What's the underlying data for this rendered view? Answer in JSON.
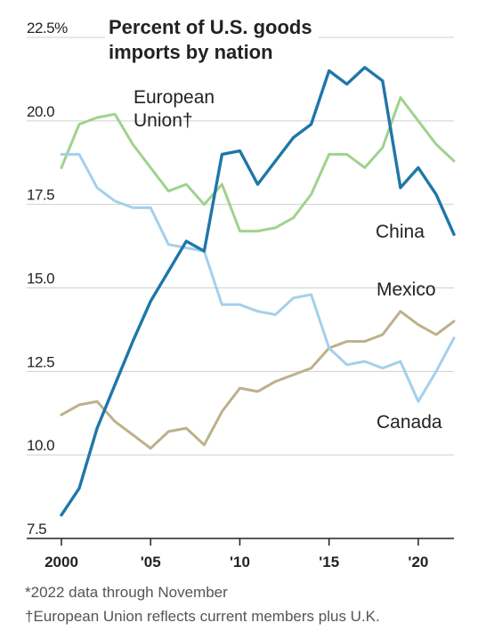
{
  "chart_data": {
    "type": "line",
    "title": "Percent of U.S. goods imports by nation",
    "title_lines": [
      "Percent of U.S. goods",
      "imports by nation"
    ],
    "ylim": [
      7.5,
      22.5
    ],
    "yticks": [
      {
        "value": 22.5,
        "label": "22.5%"
      },
      {
        "value": 20.0,
        "label": "20.0"
      },
      {
        "value": 17.5,
        "label": "17.5"
      },
      {
        "value": 15.0,
        "label": "15.0"
      },
      {
        "value": 12.5,
        "label": "12.5"
      },
      {
        "value": 10.0,
        "label": "10.0"
      },
      {
        "value": 7.5,
        "label": "7.5"
      }
    ],
    "xlim": [
      2000,
      2022
    ],
    "xticks": [
      {
        "value": 2000,
        "label": "2000"
      },
      {
        "value": 2005,
        "label": "'05"
      },
      {
        "value": 2010,
        "label": "'10"
      },
      {
        "value": 2015,
        "label": "'15"
      },
      {
        "value": 2020,
        "label": "'20"
      }
    ],
    "grid": true,
    "x": [
      2000,
      2001,
      2002,
      2003,
      2004,
      2005,
      2006,
      2007,
      2008,
      2009,
      2010,
      2011,
      2012,
      2013,
      2014,
      2015,
      2016,
      2017,
      2018,
      2019,
      2020,
      2021,
      2022
    ],
    "series": [
      {
        "name": "China",
        "color": "#1f77a8",
        "values": [
          8.2,
          9.0,
          10.8,
          12.1,
          13.4,
          14.6,
          15.5,
          16.4,
          16.1,
          19.0,
          19.1,
          18.1,
          18.8,
          19.5,
          19.9,
          21.5,
          21.1,
          21.6,
          21.2,
          18.0,
          18.6,
          17.8,
          16.6
        ]
      },
      {
        "name": "Mexico",
        "color": "#bdb18a",
        "values": [
          11.2,
          11.5,
          11.6,
          11.0,
          10.6,
          10.2,
          10.7,
          10.8,
          10.3,
          11.3,
          12.0,
          11.9,
          12.2,
          12.4,
          12.6,
          13.2,
          13.4,
          13.4,
          13.6,
          14.3,
          13.9,
          13.6,
          14.0
        ]
      },
      {
        "name": "European Union†",
        "label_lines": [
          "European",
          "Union†"
        ],
        "color": "#9fd38c",
        "values": [
          18.6,
          19.9,
          20.1,
          20.2,
          19.3,
          18.6,
          17.9,
          18.1,
          17.5,
          18.1,
          16.7,
          16.7,
          16.8,
          17.1,
          17.8,
          19.0,
          19.0,
          18.6,
          19.2,
          20.7,
          20.0,
          19.3,
          18.8
        ]
      },
      {
        "name": "Canada",
        "color": "#a3d0ec",
        "values": [
          19.0,
          19.0,
          18.0,
          17.6,
          17.4,
          17.4,
          16.3,
          16.2,
          16.1,
          14.5,
          14.5,
          14.3,
          14.2,
          14.7,
          14.8,
          13.2,
          12.7,
          12.8,
          12.6,
          12.8,
          11.6,
          12.5,
          13.5
        ]
      }
    ],
    "footnotes": [
      "*2022 data through November",
      "†European Union reflects current members plus U.K."
    ]
  }
}
